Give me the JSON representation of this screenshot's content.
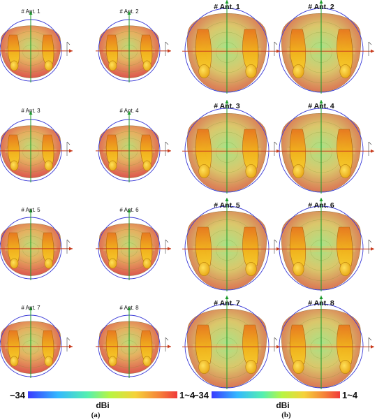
{
  "panels": [
    {
      "id": "a",
      "caption": "(a)",
      "labels": [
        "# Ant. 1",
        "# Ant. 2",
        "# Ant. 3",
        "# Ant. 4",
        "# Ant. 5",
        "# Ant. 6",
        "# Ant. 7",
        "# Ant. 8"
      ],
      "colorbar": {
        "min_label": "−34",
        "max_label": "1~4",
        "unit": "dBi"
      }
    },
    {
      "id": "b",
      "caption": "(b)",
      "labels": [
        "# Ant. 1",
        "# Ant. 2",
        "# Ant. 3",
        "# Ant. 4",
        "# Ant. 5",
        "# Ant. 6",
        "# Ant. 7",
        "# Ant. 8"
      ],
      "colorbar": {
        "min_label": "−34",
        "max_label": "1~4",
        "unit": "dBi"
      }
    }
  ],
  "colors": {
    "circle": "#3b3bd6",
    "x_axis": "#c83a1c",
    "y_axis": "#1a9a2a",
    "hand": "#f2b21a",
    "colormap": [
      "#3333ff",
      "#33ccff",
      "#66ff99",
      "#ccff33",
      "#ffcc33",
      "#ff6633",
      "#ff3333"
    ]
  }
}
